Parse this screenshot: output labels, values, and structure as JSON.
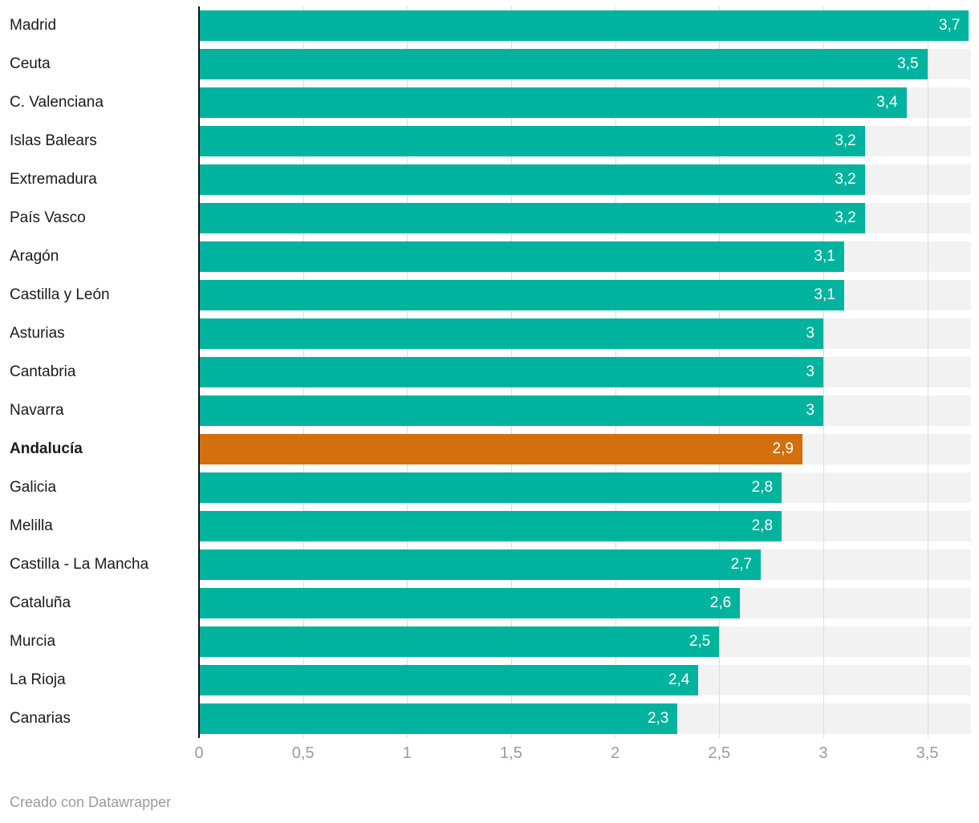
{
  "chart_data": {
    "type": "bar",
    "orientation": "horizontal",
    "title": "",
    "xlabel": "",
    "ylabel": "",
    "categories": [
      "Madrid",
      "Ceuta",
      "C. Valenciana",
      "Islas Balears",
      "Extremadura",
      "País Vasco",
      "Aragón",
      "Castilla y León",
      "Asturias",
      "Cantabria",
      "Navarra",
      "Andalucía",
      "Galicia",
      "Melilla",
      "Castilla - La Mancha",
      "Cataluña",
      "Murcia",
      "La Rioja",
      "Canarias"
    ],
    "values": [
      3.7,
      3.5,
      3.4,
      3.2,
      3.2,
      3.2,
      3.1,
      3.1,
      3,
      3,
      3,
      2.9,
      2.8,
      2.8,
      2.7,
      2.6,
      2.5,
      2.4,
      2.3
    ],
    "value_labels": [
      "3,7",
      "3,5",
      "3,4",
      "3,2",
      "3,2",
      "3,2",
      "3,1",
      "3,1",
      "3",
      "3",
      "3",
      "2,9",
      "2,8",
      "2,8",
      "2,7",
      "2,6",
      "2,5",
      "2,4",
      "2,3"
    ],
    "highlight_category": "Andalucía",
    "x_ticks": [
      "0",
      "0,5",
      "1",
      "1,5",
      "2",
      "2,5",
      "3",
      "3,5"
    ],
    "x_tick_values": [
      0,
      0.5,
      1,
      1.5,
      2,
      2.5,
      3,
      3.5
    ],
    "xlim": [
      0,
      3.71
    ],
    "grid": true,
    "legend": "none",
    "colors": {
      "bar": "#00b39e",
      "highlight": "#d2700f",
      "row_bg": "#f2f2f2",
      "gridline": "#dcdcdc",
      "axis_line": "#111111",
      "tick_label": "#9b9b9b",
      "category_label": "#1a1a1a",
      "value_label": "#ffffff"
    }
  },
  "footer": {
    "credit": "Creado con Datawrapper"
  }
}
